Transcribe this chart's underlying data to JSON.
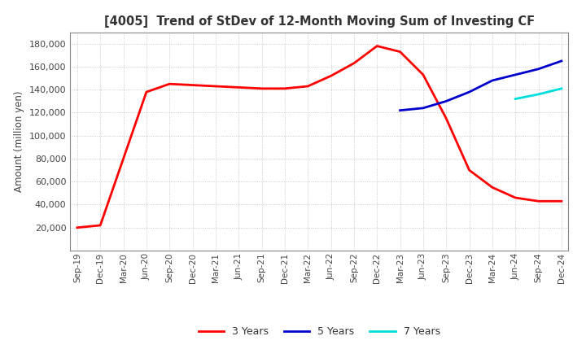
{
  "title": "[4005]  Trend of StDev of 12-Month Moving Sum of Investing CF",
  "ylabel": "Amount (million yen)",
  "ylim": [
    0,
    190000
  ],
  "yticks": [
    20000,
    40000,
    60000,
    80000,
    100000,
    120000,
    140000,
    160000,
    180000
  ],
  "background_color": "#ffffff",
  "grid_color": "#bbbbbb",
  "x_labels": [
    "Sep-19",
    "Dec-19",
    "Mar-20",
    "Jun-20",
    "Sep-20",
    "Dec-20",
    "Mar-21",
    "Jun-21",
    "Sep-21",
    "Dec-21",
    "Mar-22",
    "Jun-22",
    "Sep-22",
    "Dec-22",
    "Mar-23",
    "Jun-23",
    "Sep-23",
    "Dec-23",
    "Mar-24",
    "Jun-24",
    "Sep-24",
    "Dec-24"
  ],
  "series": {
    "3 Years": {
      "color": "#ff0000",
      "data": [
        20000,
        22000,
        80000,
        138000,
        145000,
        144000,
        143000,
        142000,
        141000,
        141000,
        143000,
        152000,
        163000,
        178000,
        173000,
        153000,
        115000,
        70000,
        55000,
        46000,
        43000,
        43000
      ]
    },
    "5 Years": {
      "color": "#0000cc",
      "data": [
        null,
        null,
        null,
        null,
        null,
        null,
        null,
        null,
        null,
        null,
        null,
        null,
        null,
        null,
        122000,
        124000,
        130000,
        138000,
        148000,
        153000,
        158000,
        165000
      ]
    },
    "7 Years": {
      "color": "#00dddd",
      "data": [
        null,
        null,
        null,
        null,
        null,
        null,
        null,
        null,
        null,
        null,
        null,
        null,
        null,
        null,
        null,
        null,
        null,
        null,
        null,
        132000,
        136000,
        141000
      ]
    },
    "10 Years": {
      "color": "#008800",
      "data": [
        null,
        null,
        null,
        null,
        null,
        null,
        null,
        null,
        null,
        null,
        null,
        null,
        null,
        null,
        null,
        null,
        null,
        null,
        null,
        null,
        null,
        null
      ]
    }
  }
}
